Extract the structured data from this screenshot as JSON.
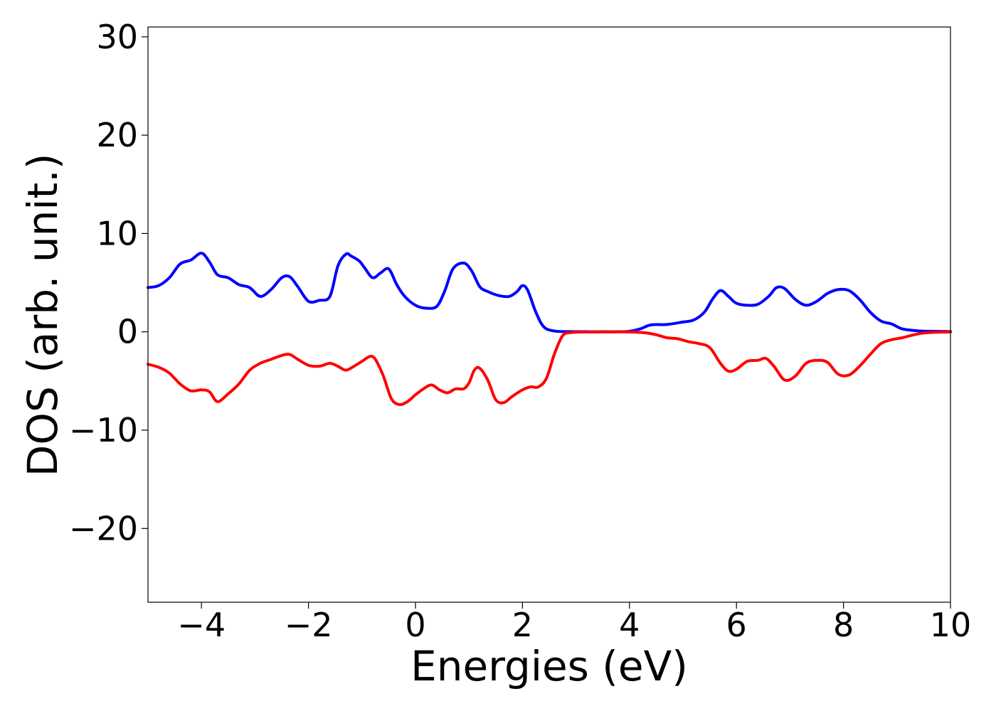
{
  "chart_data": {
    "type": "line",
    "title": "",
    "xlabel": "Energies (eV)",
    "ylabel": "DOS (arb. unit.)",
    "xlim": [
      -5,
      10
    ],
    "ylim": [
      -27.5,
      31
    ],
    "grid": false,
    "legend": "none",
    "xticks": [
      -4,
      -2,
      0,
      2,
      4,
      6,
      8,
      10
    ],
    "xtick_labels": [
      "−4",
      "−2",
      "0",
      "2",
      "4",
      "6",
      "8",
      "10"
    ],
    "yticks": [
      -20,
      -10,
      0,
      10,
      20,
      30
    ],
    "ytick_labels": [
      "−20",
      "−10",
      "0",
      "10",
      "20",
      "30"
    ],
    "series": [
      {
        "color": "#0000ff",
        "x": [
          -5.0,
          -4.8,
          -4.6,
          -4.4,
          -4.2,
          -4.0,
          -3.85,
          -3.7,
          -3.5,
          -3.3,
          -3.1,
          -2.9,
          -2.7,
          -2.5,
          -2.35,
          -2.2,
          -2.0,
          -1.8,
          -1.6,
          -1.45,
          -1.3,
          -1.2,
          -1.05,
          -0.95,
          -0.8,
          -0.65,
          -0.5,
          -0.35,
          -0.2,
          0.0,
          0.2,
          0.4,
          0.55,
          0.7,
          0.9,
          1.05,
          1.2,
          1.35,
          1.55,
          1.75,
          1.9,
          2.0,
          2.1,
          2.25,
          2.4,
          2.6,
          2.9,
          3.2,
          3.5,
          3.8,
          4.0,
          4.2,
          4.4,
          4.7,
          5.0,
          5.2,
          5.4,
          5.55,
          5.7,
          5.85,
          6.0,
          6.2,
          6.4,
          6.6,
          6.75,
          6.9,
          7.1,
          7.3,
          7.5,
          7.7,
          7.9,
          8.1,
          8.3,
          8.5,
          8.7,
          8.9,
          9.1,
          9.4,
          9.7,
          10.0
        ],
        "y": [
          4.5,
          4.7,
          5.5,
          6.9,
          7.3,
          8.0,
          7.1,
          5.8,
          5.5,
          4.8,
          4.5,
          3.6,
          4.3,
          5.5,
          5.6,
          4.6,
          3.1,
          3.2,
          3.6,
          6.7,
          7.9,
          7.7,
          7.2,
          6.5,
          5.5,
          6.0,
          6.4,
          4.8,
          3.6,
          2.7,
          2.4,
          2.6,
          4.2,
          6.4,
          7.0,
          6.2,
          4.6,
          4.1,
          3.7,
          3.6,
          4.1,
          4.7,
          4.2,
          2.0,
          0.5,
          0.08,
          0.02,
          0.01,
          0.01,
          0.01,
          0.05,
          0.3,
          0.7,
          0.75,
          1.0,
          1.2,
          2.0,
          3.3,
          4.2,
          3.6,
          2.9,
          2.7,
          2.8,
          3.6,
          4.5,
          4.4,
          3.3,
          2.7,
          3.1,
          3.9,
          4.3,
          4.2,
          3.3,
          2.0,
          1.1,
          0.8,
          0.3,
          0.1,
          0.05,
          0.02
        ]
      },
      {
        "color": "#ff0000",
        "x": [
          -5.0,
          -4.8,
          -4.6,
          -4.4,
          -4.2,
          -4.0,
          -3.85,
          -3.7,
          -3.5,
          -3.3,
          -3.1,
          -2.9,
          -2.7,
          -2.5,
          -2.35,
          -2.2,
          -2.0,
          -1.8,
          -1.6,
          -1.45,
          -1.3,
          -1.15,
          -1.0,
          -0.85,
          -0.75,
          -0.6,
          -0.45,
          -0.3,
          -0.15,
          0.0,
          0.15,
          0.3,
          0.45,
          0.6,
          0.75,
          0.9,
          1.0,
          1.1,
          1.2,
          1.35,
          1.5,
          1.65,
          1.8,
          2.0,
          2.15,
          2.3,
          2.45,
          2.6,
          2.75,
          2.9,
          3.2,
          3.6,
          4.0,
          4.3,
          4.5,
          4.7,
          4.9,
          5.1,
          5.3,
          5.5,
          5.7,
          5.85,
          6.0,
          6.2,
          6.4,
          6.55,
          6.7,
          6.9,
          7.1,
          7.3,
          7.5,
          7.7,
          7.9,
          8.1,
          8.3,
          8.5,
          8.7,
          8.9,
          9.1,
          9.4,
          9.7,
          10.0
        ],
        "y": [
          -3.3,
          -3.6,
          -4.2,
          -5.3,
          -6.0,
          -5.9,
          -6.1,
          -7.1,
          -6.3,
          -5.3,
          -3.9,
          -3.2,
          -2.8,
          -2.4,
          -2.3,
          -2.8,
          -3.4,
          -3.5,
          -3.2,
          -3.5,
          -3.9,
          -3.5,
          -3.0,
          -2.5,
          -2.8,
          -4.5,
          -6.8,
          -7.4,
          -7.1,
          -6.4,
          -5.8,
          -5.4,
          -5.9,
          -6.2,
          -5.8,
          -5.8,
          -5.2,
          -3.9,
          -3.7,
          -4.9,
          -6.9,
          -7.2,
          -6.6,
          -5.9,
          -5.6,
          -5.6,
          -4.7,
          -2.2,
          -0.4,
          -0.08,
          -0.02,
          -0.01,
          -0.01,
          -0.1,
          -0.3,
          -0.6,
          -0.7,
          -1.0,
          -1.2,
          -1.6,
          -3.2,
          -4.0,
          -3.8,
          -3.0,
          -2.9,
          -2.7,
          -3.5,
          -4.9,
          -4.5,
          -3.2,
          -2.9,
          -3.1,
          -4.3,
          -4.4,
          -3.5,
          -2.3,
          -1.2,
          -0.8,
          -0.6,
          -0.2,
          -0.05,
          -0.02
        ]
      }
    ]
  }
}
